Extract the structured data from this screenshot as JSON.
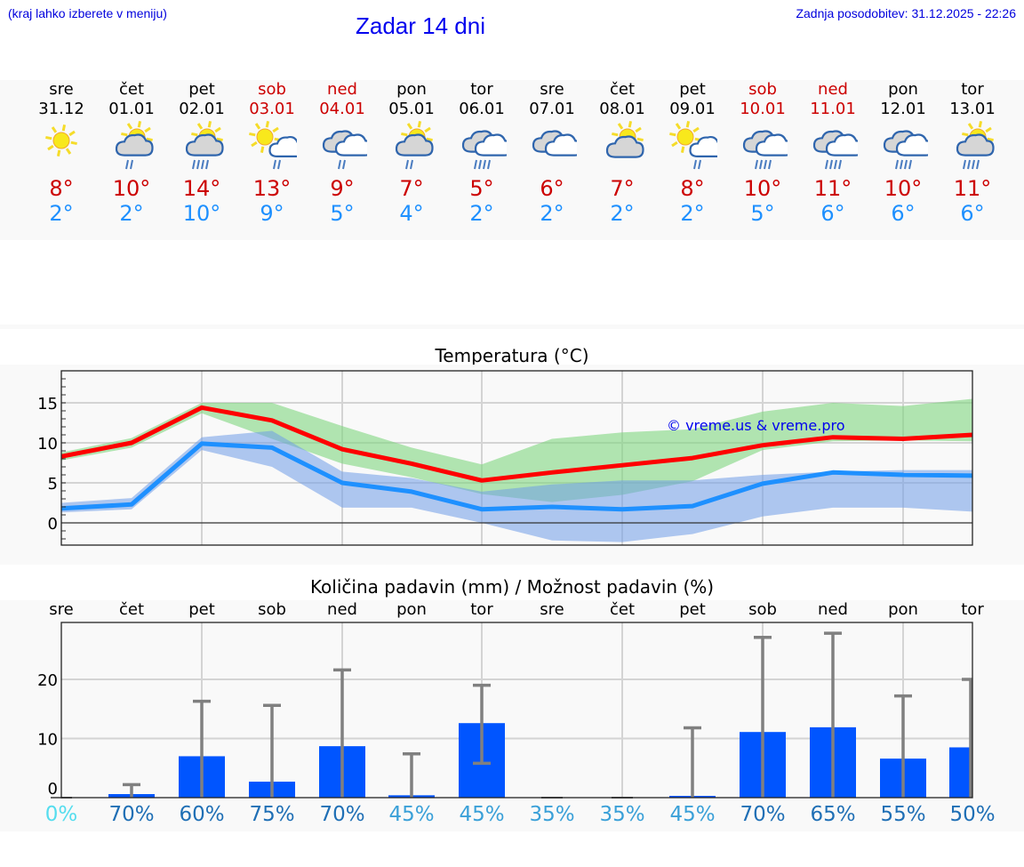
{
  "header": {
    "menu_hint": "(kraj lahko izberete v meniju)",
    "title": "Zadar 14 dni",
    "last_update": "Zadnja posodobitev: 31.12.2025 - 22:26"
  },
  "colors": {
    "max_temp": "#cc0000",
    "min_temp": "#1e90ff",
    "weekend": "#cc0000",
    "max_line": "#ff0000",
    "min_line": "#1e90ff",
    "max_band": "#7fd67f",
    "min_band": "#6f9de8",
    "precip_bar": "#0055ff",
    "error_bar": "#808080"
  },
  "days": [
    {
      "name": "sre",
      "date": "31.12",
      "weekend": false,
      "icon": "sun-icon",
      "max": "8°",
      "min": "2°"
    },
    {
      "name": "čet",
      "date": "01.01",
      "weekend": false,
      "icon": "sun-cloud-light-rain-icon",
      "max": "10°",
      "min": "2°"
    },
    {
      "name": "pet",
      "date": "02.01",
      "weekend": false,
      "icon": "sun-cloud-rain-icon",
      "max": "14°",
      "min": "10°"
    },
    {
      "name": "sob",
      "date": "03.01",
      "weekend": true,
      "icon": "sun-white-cloud-light-rain-icon",
      "max": "13°",
      "min": "9°"
    },
    {
      "name": "ned",
      "date": "04.01",
      "weekend": true,
      "icon": "overcast-light-rain-icon",
      "max": "9°",
      "min": "5°"
    },
    {
      "name": "pon",
      "date": "05.01",
      "weekend": false,
      "icon": "sun-cloud-light-rain-icon",
      "max": "7°",
      "min": "4°"
    },
    {
      "name": "tor",
      "date": "06.01",
      "weekend": false,
      "icon": "overcast-rain-icon",
      "max": "5°",
      "min": "2°"
    },
    {
      "name": "sre",
      "date": "07.01",
      "weekend": false,
      "icon": "overcast-icon",
      "max": "6°",
      "min": "2°"
    },
    {
      "name": "čet",
      "date": "08.01",
      "weekend": false,
      "icon": "sun-cloud-icon",
      "max": "7°",
      "min": "2°"
    },
    {
      "name": "pet",
      "date": "09.01",
      "weekend": false,
      "icon": "sun-white-cloud-light-rain-icon",
      "max": "8°",
      "min": "2°"
    },
    {
      "name": "sob",
      "date": "10.01",
      "weekend": true,
      "icon": "overcast-rain-icon",
      "max": "10°",
      "min": "5°"
    },
    {
      "name": "ned",
      "date": "11.01",
      "weekend": true,
      "icon": "overcast-rain-icon",
      "max": "11°",
      "min": "6°"
    },
    {
      "name": "pon",
      "date": "12.01",
      "weekend": false,
      "icon": "overcast-rain-icon",
      "max": "10°",
      "min": "6°"
    },
    {
      "name": "tor",
      "date": "13.01",
      "weekend": false,
      "icon": "sun-cloud-rain-icon",
      "max": "11°",
      "min": "6°"
    }
  ],
  "temperature_chart": {
    "title": "Temperatura (°C)",
    "watermark": "© vreme.us & vreme.pro",
    "y_ticks": [
      "0",
      "5",
      "10",
      "15"
    ]
  },
  "precip_chart": {
    "title": "Količina padavin (mm) / Možnost padavin (%)",
    "y_ticks": [
      "0",
      "10",
      "20"
    ],
    "percent_labels": [
      "0%",
      "70%",
      "60%",
      "75%",
      "70%",
      "45%",
      "45%",
      "35%",
      "35%",
      "45%",
      "70%",
      "65%",
      "55%",
      "50%"
    ],
    "percent_colors": [
      "#55ddee",
      "#1f6fb5",
      "#1f6fb5",
      "#1f6fb5",
      "#1f6fb5",
      "#3aa0d8",
      "#3aa0d8",
      "#3aa0d8",
      "#3aa0d8",
      "#3aa0d8",
      "#1f6fb5",
      "#1f6fb5",
      "#1f6fb5",
      "#1f6fb5"
    ]
  },
  "chart_data": [
    {
      "type": "line",
      "title": "Temperatura (°C)",
      "xlabel": "",
      "ylabel": "°C",
      "categories": [
        "31.12",
        "01.01",
        "02.01",
        "03.01",
        "04.01",
        "05.01",
        "06.01",
        "07.01",
        "08.01",
        "09.01",
        "10.01",
        "11.01",
        "12.01",
        "13.01"
      ],
      "ylim": [
        -2.8,
        19
      ],
      "grid": true,
      "series": [
        {
          "name": "Max temperature",
          "color": "#ff0000",
          "values": [
            8.3,
            10.0,
            14.4,
            12.8,
            9.2,
            7.4,
            5.3,
            6.3,
            7.2,
            8.1,
            9.7,
            10.7,
            10.5,
            11.0
          ]
        },
        {
          "name": "Max range upper",
          "values": [
            8.8,
            10.6,
            15.0,
            15.0,
            12.1,
            9.4,
            7.3,
            10.5,
            11.3,
            11.7,
            13.9,
            15.0,
            14.6,
            15.5
          ]
        },
        {
          "name": "Max range lower",
          "values": [
            7.8,
            9.4,
            13.7,
            10.5,
            7.4,
            5.7,
            3.6,
            2.6,
            3.5,
            5.2,
            9.1,
            10.2,
            10.3,
            10.2
          ]
        },
        {
          "name": "Min temperature",
          "color": "#1e90ff",
          "values": [
            1.8,
            2.3,
            9.9,
            9.4,
            5.0,
            3.9,
            1.7,
            2.0,
            1.7,
            2.1,
            4.9,
            6.3,
            6.0,
            5.9
          ]
        },
        {
          "name": "Min range upper",
          "values": [
            2.5,
            3.1,
            10.7,
            11.5,
            6.4,
            5.6,
            3.9,
            4.8,
            5.3,
            5.3,
            6.0,
            6.4,
            6.6,
            6.6
          ]
        },
        {
          "name": "Min range lower",
          "values": [
            1.3,
            1.7,
            9.1,
            7.0,
            1.9,
            1.9,
            0.0,
            -2.2,
            -2.4,
            -1.4,
            0.8,
            1.9,
            1.9,
            1.4
          ]
        }
      ],
      "annotations": [
        "© vreme.us & vreme.pro"
      ]
    },
    {
      "type": "bar",
      "title": "Količina padavin (mm) / Možnost padavin (%)",
      "xlabel": "",
      "ylabel": "mm",
      "categories": [
        "sre",
        "čet",
        "pet",
        "sob",
        "ned",
        "pon",
        "tor",
        "sre",
        "čet",
        "pet",
        "sob",
        "ned",
        "pon",
        "tor"
      ],
      "ylim": [
        -1,
        29
      ],
      "grid": true,
      "series": [
        {
          "name": "Precipitation (mm)",
          "color": "#0055ff",
          "values": [
            0,
            0.6,
            7.0,
            2.7,
            8.7,
            0.4,
            12.6,
            0,
            0,
            0.3,
            11.1,
            11.9,
            6.6,
            8.5
          ]
        },
        {
          "name": "Error bar upper (mm)",
          "values": [
            0,
            2.2,
            16.3,
            15.6,
            21.6,
            7.4,
            19.0,
            0,
            0,
            11.8,
            27.1,
            27.8,
            17.2,
            20.0
          ]
        },
        {
          "name": "Error bar lower (mm)",
          "values": [
            0,
            0,
            0,
            0,
            0,
            0,
            5.8,
            0,
            0,
            0,
            0,
            0,
            0,
            0
          ]
        },
        {
          "name": "Chance of precipitation (%)",
          "values": [
            0,
            70,
            60,
            75,
            70,
            45,
            45,
            35,
            35,
            45,
            70,
            65,
            55,
            50
          ]
        }
      ]
    }
  ]
}
